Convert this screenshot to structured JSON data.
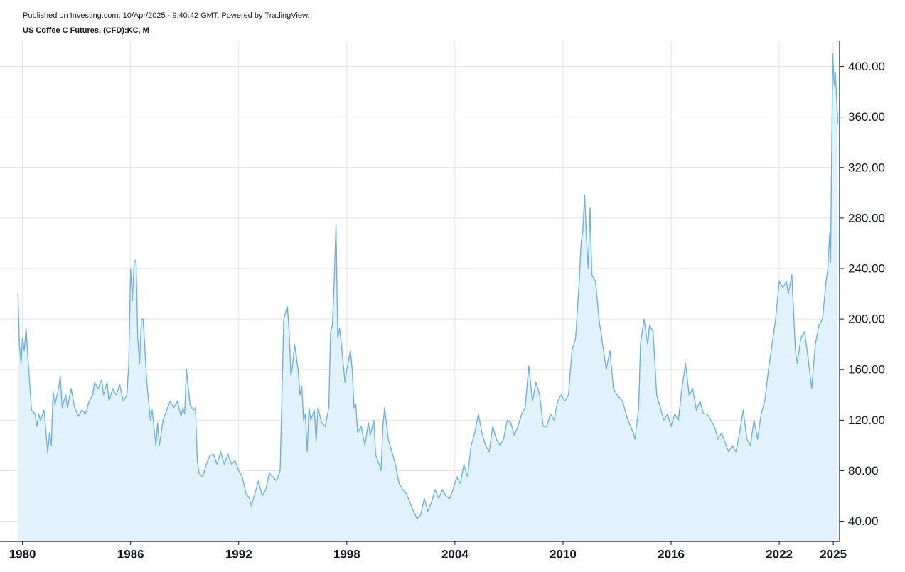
{
  "chart_data": {
    "type": "area",
    "subtitle": "Published on Investing.com, 10/Apr/2025 - 9:40:42 GMT, Powered by TradingView.",
    "title": "US Coffee C Futures, (CFD):KC, M",
    "color": "#6fb2e2",
    "fill": "#e1f2fb",
    "grid": true,
    "xlim": [
      1979.7,
      2025.35
    ],
    "xticks": [
      1980,
      1986,
      1992,
      1998,
      2004,
      2010,
      2016,
      2022,
      2025
    ],
    "ylim": [
      24,
      420
    ],
    "yticks": [
      {
        "value": 40,
        "label": "40.00"
      },
      {
        "value": 80,
        "label": "80.00"
      },
      {
        "value": 120,
        "label": "120.00"
      },
      {
        "value": 160,
        "label": "160.00"
      },
      {
        "value": 200,
        "label": "200.00"
      },
      {
        "value": 240,
        "label": "240.00"
      },
      {
        "value": 280,
        "label": "280.00"
      },
      {
        "value": 320,
        "label": "320.00"
      },
      {
        "value": 360,
        "label": "360.00"
      },
      {
        "value": 400,
        "label": "400.00"
      }
    ],
    "x": [
      1979.75,
      1979.83,
      1979.92,
      1980.0,
      1980.1,
      1980.2,
      1980.3,
      1980.5,
      1980.7,
      1980.8,
      1980.9,
      1981.0,
      1981.2,
      1981.4,
      1981.5,
      1981.6,
      1981.7,
      1981.8,
      1982.0,
      1982.1,
      1982.2,
      1982.4,
      1982.5,
      1982.7,
      1982.9,
      1983.1,
      1983.3,
      1983.5,
      1983.7,
      1983.9,
      1984.0,
      1984.2,
      1984.4,
      1984.5,
      1984.7,
      1984.8,
      1985.0,
      1985.2,
      1985.4,
      1985.6,
      1985.8,
      1985.9,
      1986.0,
      1986.1,
      1986.2,
      1986.3,
      1986.4,
      1986.5,
      1986.6,
      1986.7,
      1986.9,
      1987.1,
      1987.2,
      1987.4,
      1987.5,
      1987.6,
      1987.8,
      1988.0,
      1988.2,
      1988.4,
      1988.6,
      1988.8,
      1988.9,
      1989.0,
      1989.1,
      1989.3,
      1989.5,
      1989.6,
      1989.7,
      1989.8,
      1990.0,
      1990.2,
      1990.4,
      1990.6,
      1990.8,
      1991.0,
      1991.2,
      1991.4,
      1991.6,
      1991.8,
      1992.0,
      1992.2,
      1992.4,
      1992.6,
      1992.7,
      1992.9,
      1993.1,
      1993.3,
      1993.5,
      1993.7,
      1993.9,
      1994.1,
      1994.3,
      1994.4,
      1994.5,
      1994.6,
      1994.7,
      1994.8,
      1994.9,
      1995.0,
      1995.1,
      1995.3,
      1995.4,
      1995.5,
      1995.6,
      1995.7,
      1995.8,
      1995.9,
      1996.0,
      1996.2,
      1996.3,
      1996.4,
      1996.6,
      1996.8,
      1997.0,
      1997.1,
      1997.2,
      1997.3,
      1997.4,
      1997.5,
      1997.6,
      1997.7,
      1997.9,
      1998.0,
      1998.2,
      1998.3,
      1998.4,
      1998.5,
      1998.6,
      1998.8,
      1999.0,
      1999.2,
      1999.3,
      1999.5,
      1999.6,
      1999.8,
      1999.9,
      2000.0,
      2000.1,
      2000.3,
      2000.5,
      2000.7,
      2000.9,
      2001.1,
      2001.3,
      2001.5,
      2001.7,
      2001.9,
      2002.1,
      2002.3,
      2002.5,
      2002.7,
      2002.9,
      2003.1,
      2003.3,
      2003.5,
      2003.7,
      2003.9,
      2004.1,
      2004.3,
      2004.5,
      2004.7,
      2004.9,
      2005.1,
      2005.3,
      2005.5,
      2005.7,
      2005.9,
      2006.1,
      2006.3,
      2006.5,
      2006.7,
      2006.9,
      2007.1,
      2007.3,
      2007.5,
      2007.7,
      2007.9,
      2008.1,
      2008.3,
      2008.5,
      2008.7,
      2008.9,
      2009.1,
      2009.3,
      2009.5,
      2009.7,
      2009.9,
      2010.1,
      2010.3,
      2010.5,
      2010.7,
      2010.9,
      2011.0,
      2011.1,
      2011.2,
      2011.3,
      2011.4,
      2011.5,
      2011.6,
      2011.8,
      2012.0,
      2012.2,
      2012.4,
      2012.6,
      2012.8,
      2013.0,
      2013.3,
      2013.6,
      2013.9,
      2014.0,
      2014.2,
      2014.3,
      2014.5,
      2014.7,
      2014.8,
      2015.0,
      2015.2,
      2015.4,
      2015.6,
      2015.8,
      2016.0,
      2016.2,
      2016.4,
      2016.6,
      2016.8,
      2017.0,
      2017.2,
      2017.4,
      2017.6,
      2017.8,
      2018.0,
      2018.2,
      2018.4,
      2018.6,
      2018.8,
      2019.0,
      2019.2,
      2019.4,
      2019.6,
      2019.8,
      2020.0,
      2020.2,
      2020.4,
      2020.6,
      2020.8,
      2021.0,
      2021.2,
      2021.4,
      2021.6,
      2021.8,
      2022.0,
      2022.2,
      2022.4,
      2022.5,
      2022.7,
      2022.9,
      2023.0,
      2023.2,
      2023.4,
      2023.6,
      2023.8,
      2024.0,
      2024.2,
      2024.4,
      2024.6,
      2024.7,
      2024.8,
      2024.85,
      2024.9,
      2024.97,
      2025.05,
      2025.12,
      2025.2,
      2025.25
    ],
    "values": [
      220,
      180,
      165,
      185,
      175,
      193,
      170,
      128,
      125,
      115,
      125,
      120,
      128,
      94,
      110,
      100,
      143,
      132,
      145,
      155,
      130,
      140,
      130,
      145,
      130,
      123,
      128,
      125,
      135,
      140,
      150,
      145,
      152,
      140,
      150,
      135,
      145,
      140,
      148,
      135,
      140,
      165,
      240,
      215,
      245,
      247,
      185,
      165,
      200,
      200,
      150,
      120,
      128,
      100,
      118,
      100,
      120,
      128,
      135,
      130,
      135,
      123,
      130,
      125,
      160,
      132,
      128,
      130,
      88,
      78,
      75,
      85,
      92,
      93,
      85,
      95,
      85,
      93,
      85,
      88,
      80,
      75,
      62,
      58,
      52,
      62,
      72,
      60,
      65,
      78,
      75,
      72,
      80,
      140,
      200,
      205,
      210,
      190,
      155,
      165,
      180,
      160,
      140,
      147,
      120,
      125,
      95,
      130,
      120,
      128,
      103,
      130,
      118,
      115,
      130,
      190,
      195,
      230,
      275,
      185,
      193,
      180,
      150,
      160,
      175,
      160,
      130,
      133,
      110,
      115,
      100,
      118,
      108,
      120,
      92,
      85,
      80,
      115,
      130,
      105,
      95,
      85,
      70,
      65,
      62,
      55,
      48,
      42,
      45,
      58,
      48,
      55,
      65,
      58,
      65,
      60,
      58,
      65,
      75,
      70,
      85,
      75,
      100,
      110,
      125,
      110,
      100,
      95,
      115,
      105,
      100,
      105,
      120,
      118,
      108,
      115,
      125,
      130,
      163,
      135,
      150,
      140,
      115,
      115,
      125,
      120,
      135,
      140,
      135,
      140,
      175,
      185,
      230,
      260,
      270,
      298,
      265,
      240,
      288,
      235,
      230,
      200,
      180,
      160,
      175,
      145,
      140,
      135,
      120,
      110,
      105,
      130,
      180,
      200,
      180,
      195,
      190,
      140,
      130,
      120,
      125,
      115,
      125,
      120,
      145,
      165,
      140,
      145,
      128,
      135,
      125,
      125,
      120,
      115,
      105,
      110,
      102,
      95,
      100,
      95,
      110,
      128,
      105,
      100,
      120,
      105,
      125,
      135,
      160,
      180,
      200,
      230,
      225,
      230,
      220,
      235,
      175,
      165,
      185,
      190,
      170,
      145,
      180,
      195,
      200,
      230,
      240,
      268,
      245,
      320,
      410,
      385,
      395,
      370,
      355
    ]
  }
}
